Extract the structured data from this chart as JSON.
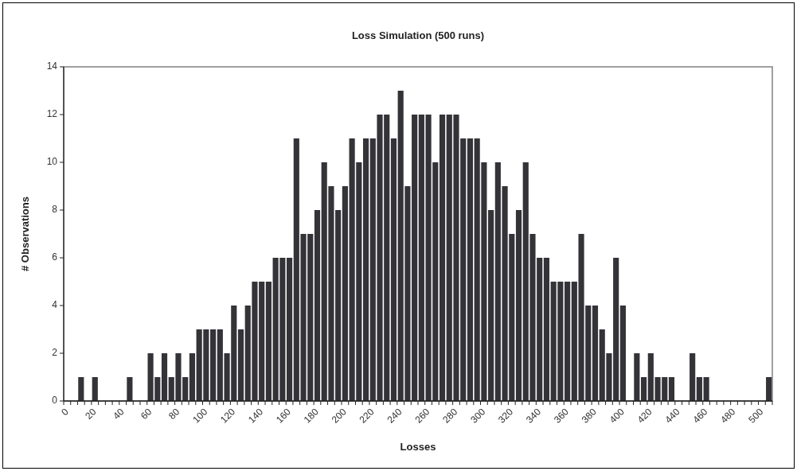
{
  "chart_data": {
    "type": "bar",
    "title": "Loss Simulation (500 runs)",
    "xlabel": "Losses",
    "ylabel": "# Observations",
    "categories": [
      "0",
      null,
      null,
      null,
      "20",
      null,
      null,
      null,
      "40",
      null,
      null,
      null,
      "60",
      null,
      null,
      null,
      "80",
      null,
      null,
      null,
      "100",
      null,
      null,
      null,
      "120",
      null,
      null,
      null,
      "140",
      null,
      null,
      null,
      "160",
      null,
      null,
      null,
      "180",
      null,
      null,
      null,
      "200",
      null,
      null,
      null,
      "220",
      null,
      null,
      null,
      "240",
      null,
      null,
      null,
      "260",
      null,
      null,
      null,
      "280",
      null,
      null,
      null,
      "300",
      null,
      null,
      null,
      "320",
      null,
      null,
      null,
      "340",
      null,
      null,
      null,
      "360",
      null,
      null,
      null,
      "380",
      null,
      null,
      null,
      "400",
      null,
      null,
      null,
      "420",
      null,
      null,
      null,
      "440",
      null,
      null,
      null,
      "460",
      null,
      null,
      null,
      "480",
      null,
      null,
      null,
      "500",
      null
    ],
    "values": [
      0,
      0,
      1,
      0,
      1,
      0,
      0,
      0,
      0,
      1,
      0,
      0,
      2,
      1,
      2,
      1,
      2,
      1,
      2,
      3,
      3,
      3,
      3,
      2,
      4,
      3,
      4,
      5,
      5,
      5,
      6,
      6,
      6,
      11,
      7,
      7,
      8,
      10,
      9,
      8,
      9,
      11,
      10,
      11,
      11,
      12,
      12,
      11,
      13,
      9,
      12,
      12,
      12,
      10,
      12,
      12,
      12,
      11,
      11,
      11,
      10,
      8,
      10,
      9,
      7,
      8,
      10,
      7,
      6,
      6,
      5,
      5,
      5,
      5,
      7,
      4,
      4,
      3,
      2,
      6,
      4,
      0,
      2,
      1,
      2,
      1,
      1,
      1,
      0,
      0,
      2,
      1,
      1,
      0,
      0,
      0,
      0,
      0,
      0,
      0,
      0,
      1
    ],
    "color": "#343438",
    "ylim": [
      0,
      14
    ],
    "yticks": [
      0,
      2,
      4,
      6,
      8,
      10,
      12,
      14
    ],
    "grid": false
  }
}
